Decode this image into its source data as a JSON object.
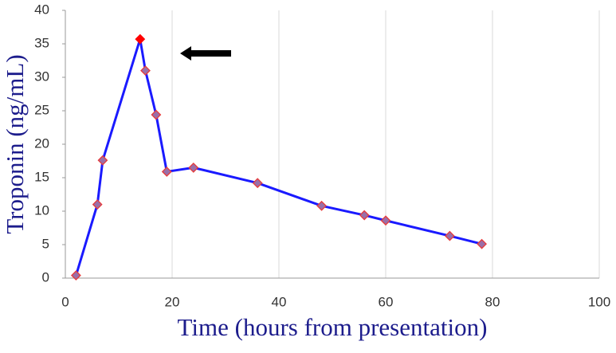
{
  "chart_data": {
    "type": "line",
    "x_label": "Time (hours from presentation)",
    "y_label": "Troponin (ng/mL)",
    "x": [
      2,
      6,
      7,
      14,
      15,
      17,
      19,
      24,
      36,
      48,
      56,
      60,
      72,
      78
    ],
    "values": [
      0.4,
      11,
      17.6,
      35.7,
      31,
      24.4,
      15.9,
      16.5,
      14.2,
      10.8,
      9.4,
      8.6,
      6.3,
      5.1
    ],
    "color": "#1a1aff",
    "marker_color": "#9a6fa8",
    "marker_edge": "#e83a3a",
    "highlight_index": 3,
    "highlight_color": "#ff0000",
    "xlim": [
      0,
      100
    ],
    "xticks": [
      0,
      20,
      40,
      60,
      80,
      100
    ],
    "ylim": [
      0,
      40
    ],
    "yticks": [
      0,
      5,
      10,
      15,
      20,
      25,
      30,
      35,
      40
    ],
    "grid": "x"
  }
}
